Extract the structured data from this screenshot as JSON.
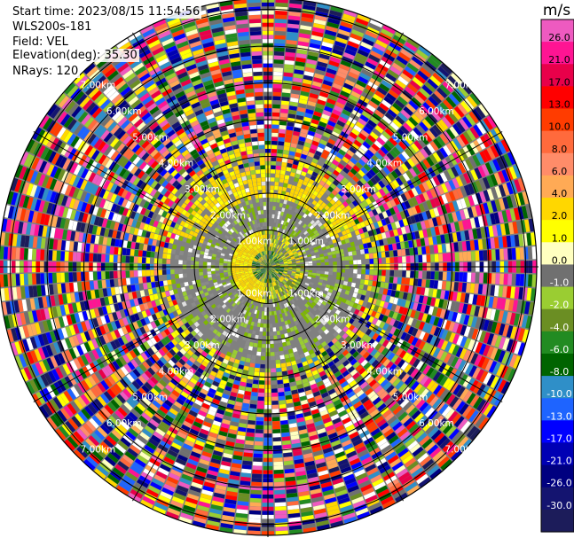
{
  "header": {
    "start_time": "Start time: 2023/08/15 11:54:56",
    "site": "WLS200s-181",
    "field": "Field: VEL",
    "elevation": "Elevation(deg): 35.30",
    "nrays": "NRays: 120"
  },
  "chart_data": {
    "type": "heatmap",
    "projection": "polar-ppi",
    "nrays": 120,
    "range_ring_labels": [
      "1.00km",
      "2.00km",
      "3.00km",
      "4.00km",
      "5.00km",
      "6.00km",
      "7.00km"
    ],
    "colorbar": {
      "unit": "m/s",
      "ticks": [
        "26.0",
        "21.0",
        "17.0",
        "13.0",
        "10.0",
        "8.0",
        "6.0",
        "4.0",
        "2.0",
        "1.0",
        "0.0",
        "-1.0",
        "-2.0",
        "-4.0",
        "-6.0",
        "-8.0",
        "-10.0",
        "-13.0",
        "-17.0",
        "-21.0",
        "-26.0",
        "-30.0"
      ],
      "colors": [
        "#ee5ac0",
        "#ff1493",
        "#e8004a",
        "#ff0000",
        "#ff3c00",
        "#ff6a3c",
        "#ff8c69",
        "#ffaa55",
        "#ffd700",
        "#ffff00",
        "#ffffc0",
        "#707070",
        "#9acd32",
        "#6b8e23",
        "#228b22",
        "#006400",
        "#2f8fc8",
        "#1e64ff",
        "#0000ff",
        "#0000b4",
        "#000080",
        "#141470",
        "#1c1c5a"
      ]
    },
    "regions": [
      {
        "range_from": 0.0,
        "range_to": 1.0,
        "pattern": "green-yellow core"
      },
      {
        "range_from": 1.0,
        "range_to": 3.0,
        "pattern": "grey and yellow-green, near-zero velocity"
      },
      {
        "range_from": 3.0,
        "range_to": 7.3,
        "pattern": "noisy, full color range"
      }
    ]
  }
}
